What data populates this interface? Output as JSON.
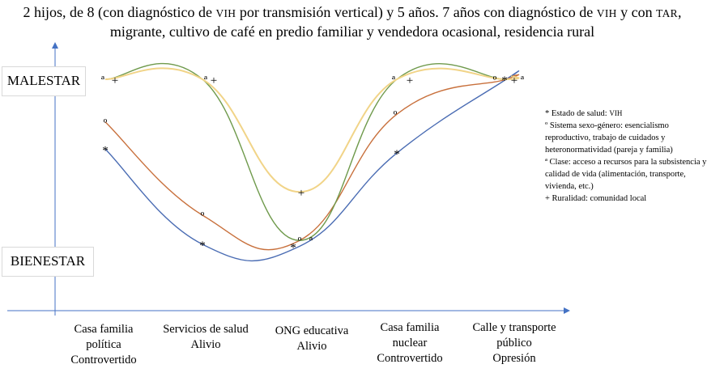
{
  "title": {
    "part1": "2 hijos, de 8 (con diagnóstico de ",
    "vih1": "VIH",
    "part2": " por transmisión vertical) y 5 años. 7 años con diagnóstico de ",
    "vih2": "VIH",
    "part3": " y con ",
    "tar": "TAR",
    "part4": ", migrante, cultivo de café en predio familiar y vendedora ocasional, residencia rural"
  },
  "y_labels": {
    "top": "MALESTAR",
    "bottom": "BIENESTAR"
  },
  "categories": [
    {
      "lines": [
        "Casa familia",
        "política",
        "Controvertido"
      ]
    },
    {
      "lines": [
        "Servicios de salud",
        "Alivio"
      ]
    },
    {
      "lines": [
        "ONG educativa",
        "Alivio"
      ]
    },
    {
      "lines": [
        "Casa familia",
        "nuclear",
        "Controvertido"
      ]
    },
    {
      "lines": [
        "Calle y transporte",
        "público",
        "Opresión"
      ]
    }
  ],
  "legend": {
    "health_prefix": "* Estado de salud: ",
    "health_vih": "VIH",
    "gender": "º Sistema sexo-género: esencialismo reproductivo, trabajo de cuidados y heteronormatividad (pareja y familia)",
    "class": "ª Clase: acceso a recursos para la subsistencia y calidad de vida (alimentación, transporte, vivienda, etc.)",
    "rural": "+ Ruralidad: comunidad local"
  },
  "chart_data": {
    "type": "line",
    "scale": "0 = bienestar, 10 = malestar",
    "categories": [
      "Casa familia política",
      "Servicios de salud",
      "ONG educativa",
      "Casa familia nuclear",
      "Calle y transporte público"
    ],
    "series": [
      {
        "name": "Estado de salud",
        "marker": "*",
        "color": "#4a6cb3",
        "values": [
          6.4,
          1.5,
          1.4,
          6.2,
          10.0
        ]
      },
      {
        "name": "Sistema sexo-género",
        "marker": "º",
        "color": "#c8703c",
        "values": [
          7.8,
          3.0,
          1.7,
          8.2,
          10.0
        ]
      },
      {
        "name": "Clase",
        "marker": "ª",
        "color": "#6f9a4c",
        "values": [
          10.0,
          10.0,
          1.7,
          10.0,
          10.0
        ]
      },
      {
        "name": "Ruralidad",
        "marker": "+",
        "color": "#f1d488",
        "values": [
          10.0,
          10.0,
          4.2,
          10.0,
          10.0
        ]
      }
    ]
  }
}
